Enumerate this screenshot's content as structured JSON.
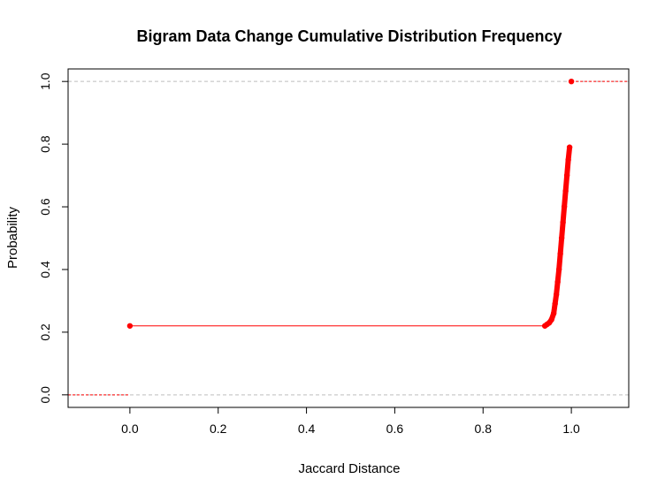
{
  "chart_data": {
    "type": "scatter",
    "subtype": "ecdf-step",
    "title": "Bigram Data Change Cumulative Distribution Frequency",
    "xlabel": "Jaccard Distance",
    "ylabel": "Probability",
    "xlim": [
      -0.14,
      1.13
    ],
    "ylim": [
      -0.04,
      1.04
    ],
    "x_ticks": [
      "0.0",
      "0.2",
      "0.4",
      "0.6",
      "0.8",
      "1.0"
    ],
    "x_tick_values": [
      0.0,
      0.2,
      0.4,
      0.6,
      0.8,
      1.0
    ],
    "y_ticks": [
      "0.0",
      "0.2",
      "0.4",
      "0.6",
      "0.8",
      "1.0"
    ],
    "y_tick_values": [
      0.0,
      0.2,
      0.4,
      0.6,
      0.8,
      1.0
    ],
    "grid": false,
    "reference_lines": [
      0.0,
      1.0
    ],
    "reference_line_color": "#bebebe",
    "series_color": "#ff0000",
    "points": [
      [
        0.0,
        0.22
      ],
      [
        0.94,
        0.22
      ],
      [
        0.945,
        0.225
      ],
      [
        0.95,
        0.23
      ],
      [
        0.955,
        0.24
      ],
      [
        0.96,
        0.26
      ],
      [
        0.963,
        0.29
      ],
      [
        0.966,
        0.32
      ],
      [
        0.969,
        0.36
      ],
      [
        0.972,
        0.4
      ],
      [
        0.975,
        0.45
      ],
      [
        0.978,
        0.5
      ],
      [
        0.981,
        0.55
      ],
      [
        0.984,
        0.6
      ],
      [
        0.987,
        0.65
      ],
      [
        0.99,
        0.7
      ],
      [
        0.993,
        0.75
      ],
      [
        0.996,
        0.79
      ],
      [
        1.0,
        1.0
      ]
    ],
    "left_tail_level": 0.0,
    "right_tail_level": 1.0
  }
}
